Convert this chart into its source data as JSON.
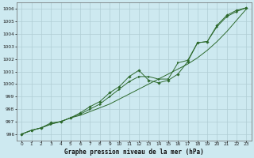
{
  "title": "Graphe pression niveau de la mer (hPa)",
  "background_color": "#cde9f0",
  "grid_color": "#b0cdd4",
  "line_color": "#2d6a2d",
  "x_ticks": [
    0,
    1,
    2,
    3,
    4,
    5,
    6,
    7,
    8,
    9,
    10,
    11,
    12,
    13,
    14,
    15,
    16,
    17,
    18,
    19,
    20,
    21,
    22,
    23
  ],
  "ylim": [
    995.5,
    1006.5
  ],
  "yticks": [
    996,
    997,
    998,
    999,
    1000,
    1001,
    1002,
    1003,
    1004,
    1005,
    1006
  ],
  "series1": [
    996.0,
    996.3,
    996.5,
    996.8,
    997.0,
    997.3,
    997.5,
    997.8,
    998.1,
    998.4,
    998.8,
    999.2,
    999.6,
    1000.0,
    1000.4,
    1000.8,
    1001.2,
    1001.6,
    1002.1,
    1002.7,
    1003.4,
    1004.2,
    1005.1,
    1006.0
  ],
  "series2": [
    996.0,
    996.3,
    996.5,
    996.9,
    997.0,
    997.3,
    997.7,
    998.2,
    998.6,
    999.3,
    999.8,
    1000.6,
    1001.1,
    1000.3,
    1000.1,
    1000.3,
    1000.8,
    1001.8,
    1003.3,
    1003.4,
    1004.7,
    1005.5,
    1005.9,
    1006.1
  ],
  "series3": [
    996.0,
    996.3,
    996.5,
    996.8,
    997.0,
    997.3,
    997.6,
    998.0,
    998.4,
    999.0,
    999.6,
    1000.2,
    1000.6,
    1000.6,
    1000.4,
    1000.4,
    1001.7,
    1001.9,
    1003.3,
    1003.4,
    1004.6,
    1005.4,
    1005.8,
    1006.1
  ],
  "figsize": [
    3.2,
    2.0
  ],
  "dpi": 100,
  "title_fontsize": 5.5,
  "tick_fontsize": 4.2,
  "linewidth": 0.7,
  "markersize": 1.8
}
